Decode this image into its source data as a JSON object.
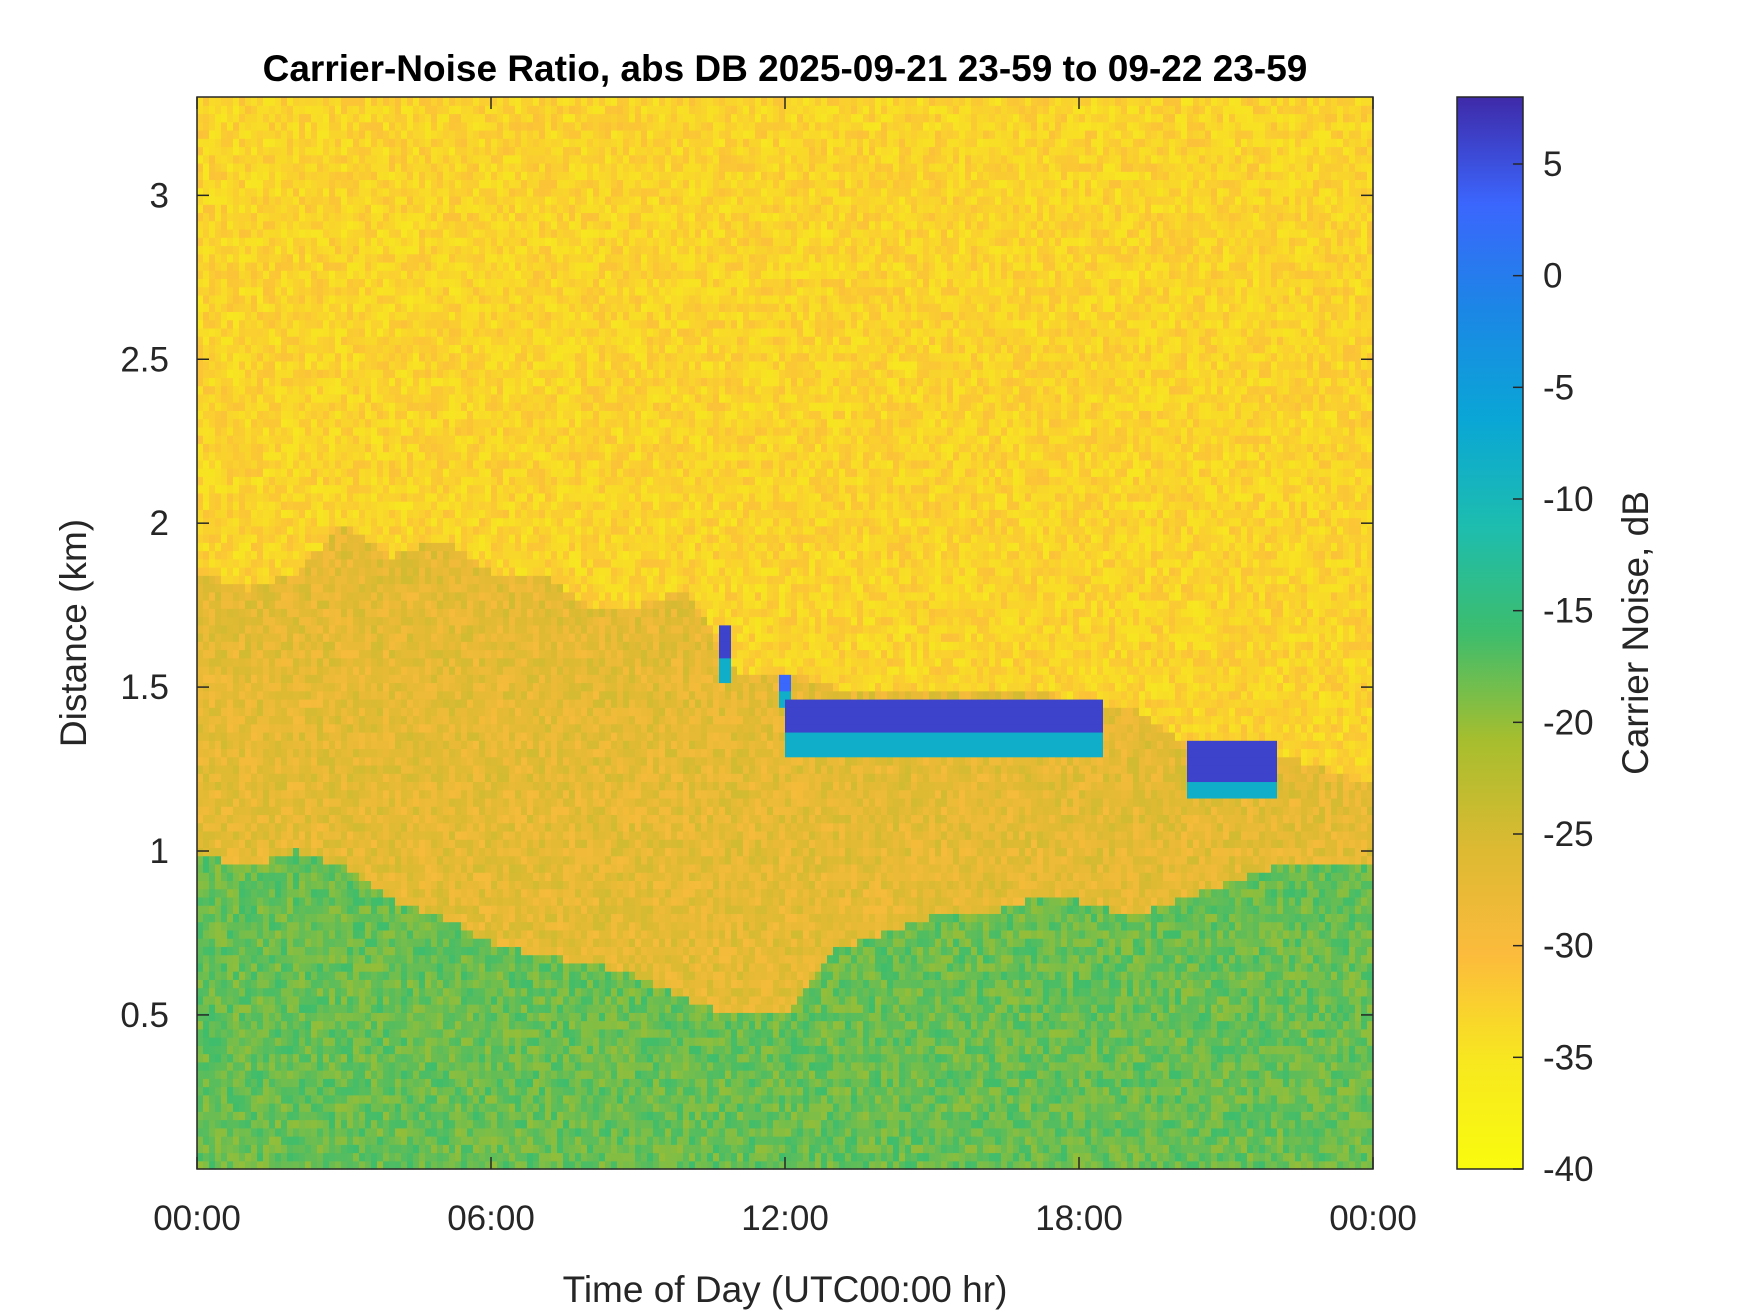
{
  "chart_data": {
    "type": "heatmap",
    "title": "Carrier-Noise Ratio, abs DB 2025-09-21 23-59 to 09-22 23-59",
    "xlabel": "Time of Day (UTC00:00 hr)",
    "ylabel": "Distance (km)",
    "x_unit": "hours",
    "xlim": [
      0,
      24
    ],
    "ylim": [
      0.03,
      3.3
    ],
    "x_ticks": [
      {
        "value": 0,
        "label": "00:00"
      },
      {
        "value": 6,
        "label": "06:00"
      },
      {
        "value": 12,
        "label": "12:00"
      },
      {
        "value": 18,
        "label": "18:00"
      },
      {
        "value": 24,
        "label": "00:00"
      }
    ],
    "y_ticks": [
      {
        "value": 0.5,
        "label": "0.5"
      },
      {
        "value": 1,
        "label": "1"
      },
      {
        "value": 1.5,
        "label": "1.5"
      },
      {
        "value": 2,
        "label": "2"
      },
      {
        "value": 2.5,
        "label": "2.5"
      },
      {
        "value": 3,
        "label": "3"
      }
    ],
    "colorbar": {
      "label": "Carrier Noise, dB",
      "range": [
        -40,
        8
      ],
      "ticks": [
        {
          "value": 5,
          "label": "5"
        },
        {
          "value": 0,
          "label": "0"
        },
        {
          "value": -5,
          "label": "-5"
        },
        {
          "value": -10,
          "label": "-10"
        },
        {
          "value": -15,
          "label": "-15"
        },
        {
          "value": -20,
          "label": "-20"
        },
        {
          "value": -25,
          "label": "-25"
        },
        {
          "value": -30,
          "label": "-30"
        },
        {
          "value": -35,
          "label": "-35"
        },
        {
          "value": -40,
          "label": "-40"
        }
      ],
      "colormap": "parula"
    },
    "grid": false,
    "background_value": -33,
    "features": {
      "ground_layer_top_km": [
        [
          0,
          1.0
        ],
        [
          1,
          0.95
        ],
        [
          2,
          1.0
        ],
        [
          3,
          0.95
        ],
        [
          4,
          0.85
        ],
        [
          5,
          0.8
        ],
        [
          6,
          0.72
        ],
        [
          7,
          0.68
        ],
        [
          8,
          0.66
        ],
        [
          9,
          0.62
        ],
        [
          10,
          0.55
        ],
        [
          11,
          0.5
        ],
        [
          12,
          0.5
        ],
        [
          13,
          0.7
        ],
        [
          14,
          0.75
        ],
        [
          15,
          0.8
        ],
        [
          16,
          0.8
        ],
        [
          17,
          0.85
        ],
        [
          18,
          0.85
        ],
        [
          19,
          0.8
        ],
        [
          20,
          0.85
        ],
        [
          21,
          0.9
        ],
        [
          22,
          0.95
        ],
        [
          23,
          0.95
        ],
        [
          24,
          0.95
        ]
      ],
      "aerosol_layer_top_km": [
        [
          0,
          1.85
        ],
        [
          1,
          1.8
        ],
        [
          2,
          1.85
        ],
        [
          3,
          2.0
        ],
        [
          4,
          1.9
        ],
        [
          5,
          1.95
        ],
        [
          6,
          1.85
        ],
        [
          7,
          1.85
        ],
        [
          8,
          1.75
        ],
        [
          9,
          1.75
        ],
        [
          10,
          1.8
        ],
        [
          11,
          1.55
        ],
        [
          12,
          1.55
        ],
        [
          13,
          1.5
        ],
        [
          14,
          1.5
        ],
        [
          15,
          1.5
        ],
        [
          16,
          1.5
        ],
        [
          17,
          1.5
        ],
        [
          18,
          1.45
        ],
        [
          19,
          1.45
        ],
        [
          20,
          1.35
        ],
        [
          21,
          1.35
        ],
        [
          22,
          1.3
        ],
        [
          23,
          1.25
        ],
        [
          24,
          1.2
        ]
      ],
      "aerosol_value": -27,
      "ground_value": -18,
      "cloud_segments": [
        {
          "t0": 10.6,
          "t1": 10.9,
          "base_km": 1.58,
          "top_km": 1.68,
          "value": 6
        },
        {
          "t0": 11.9,
          "t1": 12.1,
          "base_km": 1.5,
          "top_km": 1.55,
          "value": 3
        },
        {
          "t0": 12.0,
          "t1": 18.5,
          "base_km": 1.36,
          "top_km": 1.47,
          "value": 6
        },
        {
          "t0": 20.2,
          "t1": 22.0,
          "base_km": 1.22,
          "top_km": 1.33,
          "value": 6
        }
      ]
    }
  }
}
